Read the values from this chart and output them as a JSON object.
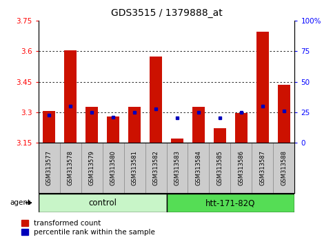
{
  "title": "GDS3515 / 1379888_at",
  "samples": [
    "GSM313577",
    "GSM313578",
    "GSM313579",
    "GSM313580",
    "GSM313581",
    "GSM313582",
    "GSM313583",
    "GSM313584",
    "GSM313585",
    "GSM313586",
    "GSM313587",
    "GSM313588"
  ],
  "bar_tops": [
    3.305,
    3.605,
    3.325,
    3.28,
    3.325,
    3.575,
    3.17,
    3.325,
    3.22,
    3.295,
    3.695,
    3.435
  ],
  "bar_bottom": 3.15,
  "blue_dots": [
    3.285,
    3.33,
    3.298,
    3.275,
    3.298,
    3.318,
    3.273,
    3.298,
    3.272,
    3.298,
    3.33,
    3.305
  ],
  "ylim_left": [
    3.15,
    3.75
  ],
  "ylim_right": [
    0,
    100
  ],
  "yticks_left": [
    3.15,
    3.3,
    3.45,
    3.6,
    3.75
  ],
  "yticks_right": [
    0,
    25,
    50,
    75,
    100
  ],
  "ytick_labels_left": [
    "3.15",
    "3.3",
    "3.45",
    "3.6",
    "3.75"
  ],
  "ytick_labels_right": [
    "0",
    "25",
    "50",
    "75",
    "100%"
  ],
  "hgrid_vals": [
    3.3,
    3.45,
    3.6
  ],
  "bar_color": "#CC1100",
  "dot_color": "#0000BB",
  "ctrl_color_light": "#c8f5c8",
  "ctrl_color": "#55dd55",
  "agent_label": "agent",
  "legend_items": [
    "transformed count",
    "percentile rank within the sample"
  ],
  "group_label_control": "control",
  "group_label_treat": "htt-171-82Q",
  "n_control": 6,
  "n_treat": 6
}
